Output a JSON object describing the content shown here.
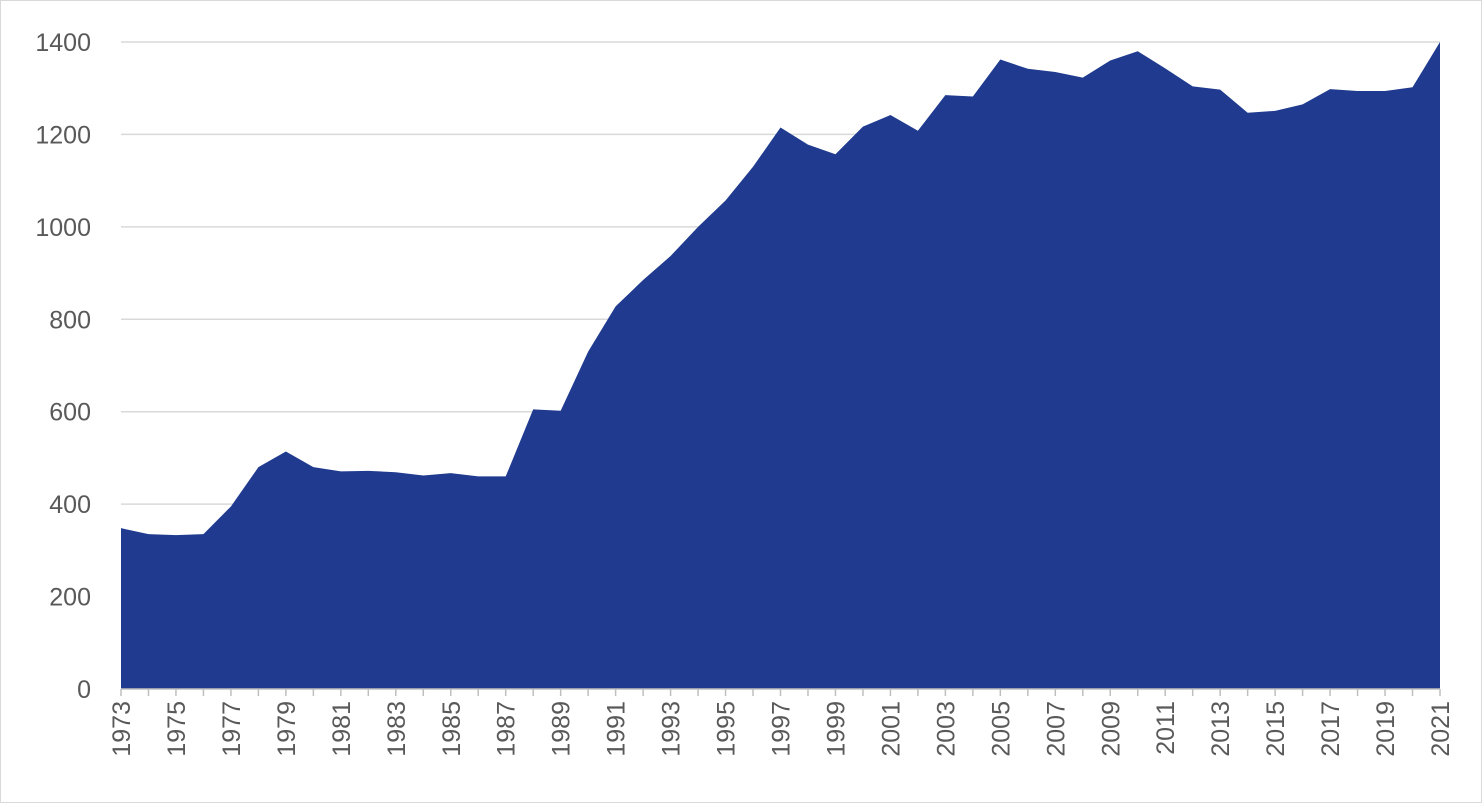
{
  "chart_data": {
    "type": "area",
    "title": "",
    "xlabel": "",
    "ylabel": "",
    "x": [
      1973,
      1974,
      1975,
      1976,
      1977,
      1978,
      1979,
      1980,
      1981,
      1982,
      1983,
      1984,
      1985,
      1986,
      1987,
      1988,
      1989,
      1990,
      1991,
      1992,
      1993,
      1994,
      1995,
      1996,
      1997,
      1998,
      1999,
      2000,
      2001,
      2002,
      2003,
      2004,
      2005,
      2006,
      2007,
      2008,
      2009,
      2010,
      2011,
      2012,
      2013,
      2014,
      2015,
      2016,
      2017,
      2018,
      2019,
      2020,
      2021
    ],
    "values": [
      348,
      335,
      333,
      335,
      395,
      480,
      514,
      480,
      471,
      472,
      469,
      462,
      467,
      460,
      460,
      605,
      602,
      730,
      828,
      885,
      937,
      1000,
      1057,
      1130,
      1215,
      1178,
      1157,
      1217,
      1242,
      1208,
      1285,
      1282,
      1362,
      1342,
      1335,
      1323,
      1360,
      1380,
      1343,
      1304,
      1297,
      1247,
      1251,
      1265,
      1298,
      1294,
      1294,
      1302,
      1400
    ],
    "ylim": [
      0,
      1400
    ],
    "yticks": [
      0,
      200,
      400,
      600,
      800,
      1000,
      1200,
      1400
    ],
    "xtick_labels": [
      "1973",
      "1975",
      "1977",
      "1979",
      "1981",
      "1983",
      "1985",
      "1987",
      "1989",
      "1991",
      "1993",
      "1995",
      "1997",
      "1999",
      "2001",
      "2003",
      "2005",
      "2007",
      "2009",
      "2011",
      "2013",
      "2015",
      "2017",
      "2019",
      "2021"
    ],
    "grid": "horizontal",
    "legend": "none",
    "fill_color": "#1f3a8f",
    "grid_color": "#d9d9d9",
    "axis_color": "#bfbfbf",
    "tick_color": "#595959"
  }
}
